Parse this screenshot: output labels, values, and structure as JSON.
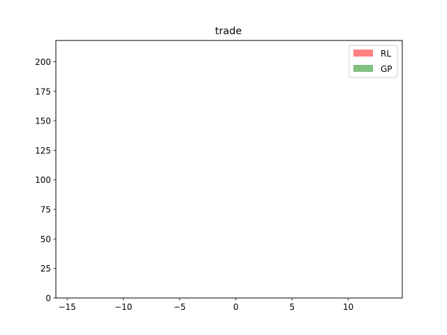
{
  "chart_data": {
    "type": "bar",
    "title": "trade",
    "xlabel": "",
    "ylabel": "",
    "xlim": [
      -16,
      14.8
    ],
    "ylim": [
      0,
      218
    ],
    "x_ticks": [
      -15,
      -10,
      -5,
      0,
      5,
      10
    ],
    "x_tick_labels": [
      "−15",
      "−10",
      "−5",
      "0",
      "5",
      "10"
    ],
    "y_ticks": [
      0,
      25,
      50,
      75,
      100,
      125,
      150,
      175,
      200
    ],
    "y_tick_labels": [
      "0",
      "25",
      "50",
      "75",
      "100",
      "125",
      "150",
      "175",
      "200"
    ],
    "grid": false,
    "legend": "top-right",
    "series": [
      {
        "name": "RL",
        "color": "#ff8080",
        "values": []
      },
      {
        "name": "GP",
        "color": "#80c080",
        "values": []
      }
    ]
  }
}
